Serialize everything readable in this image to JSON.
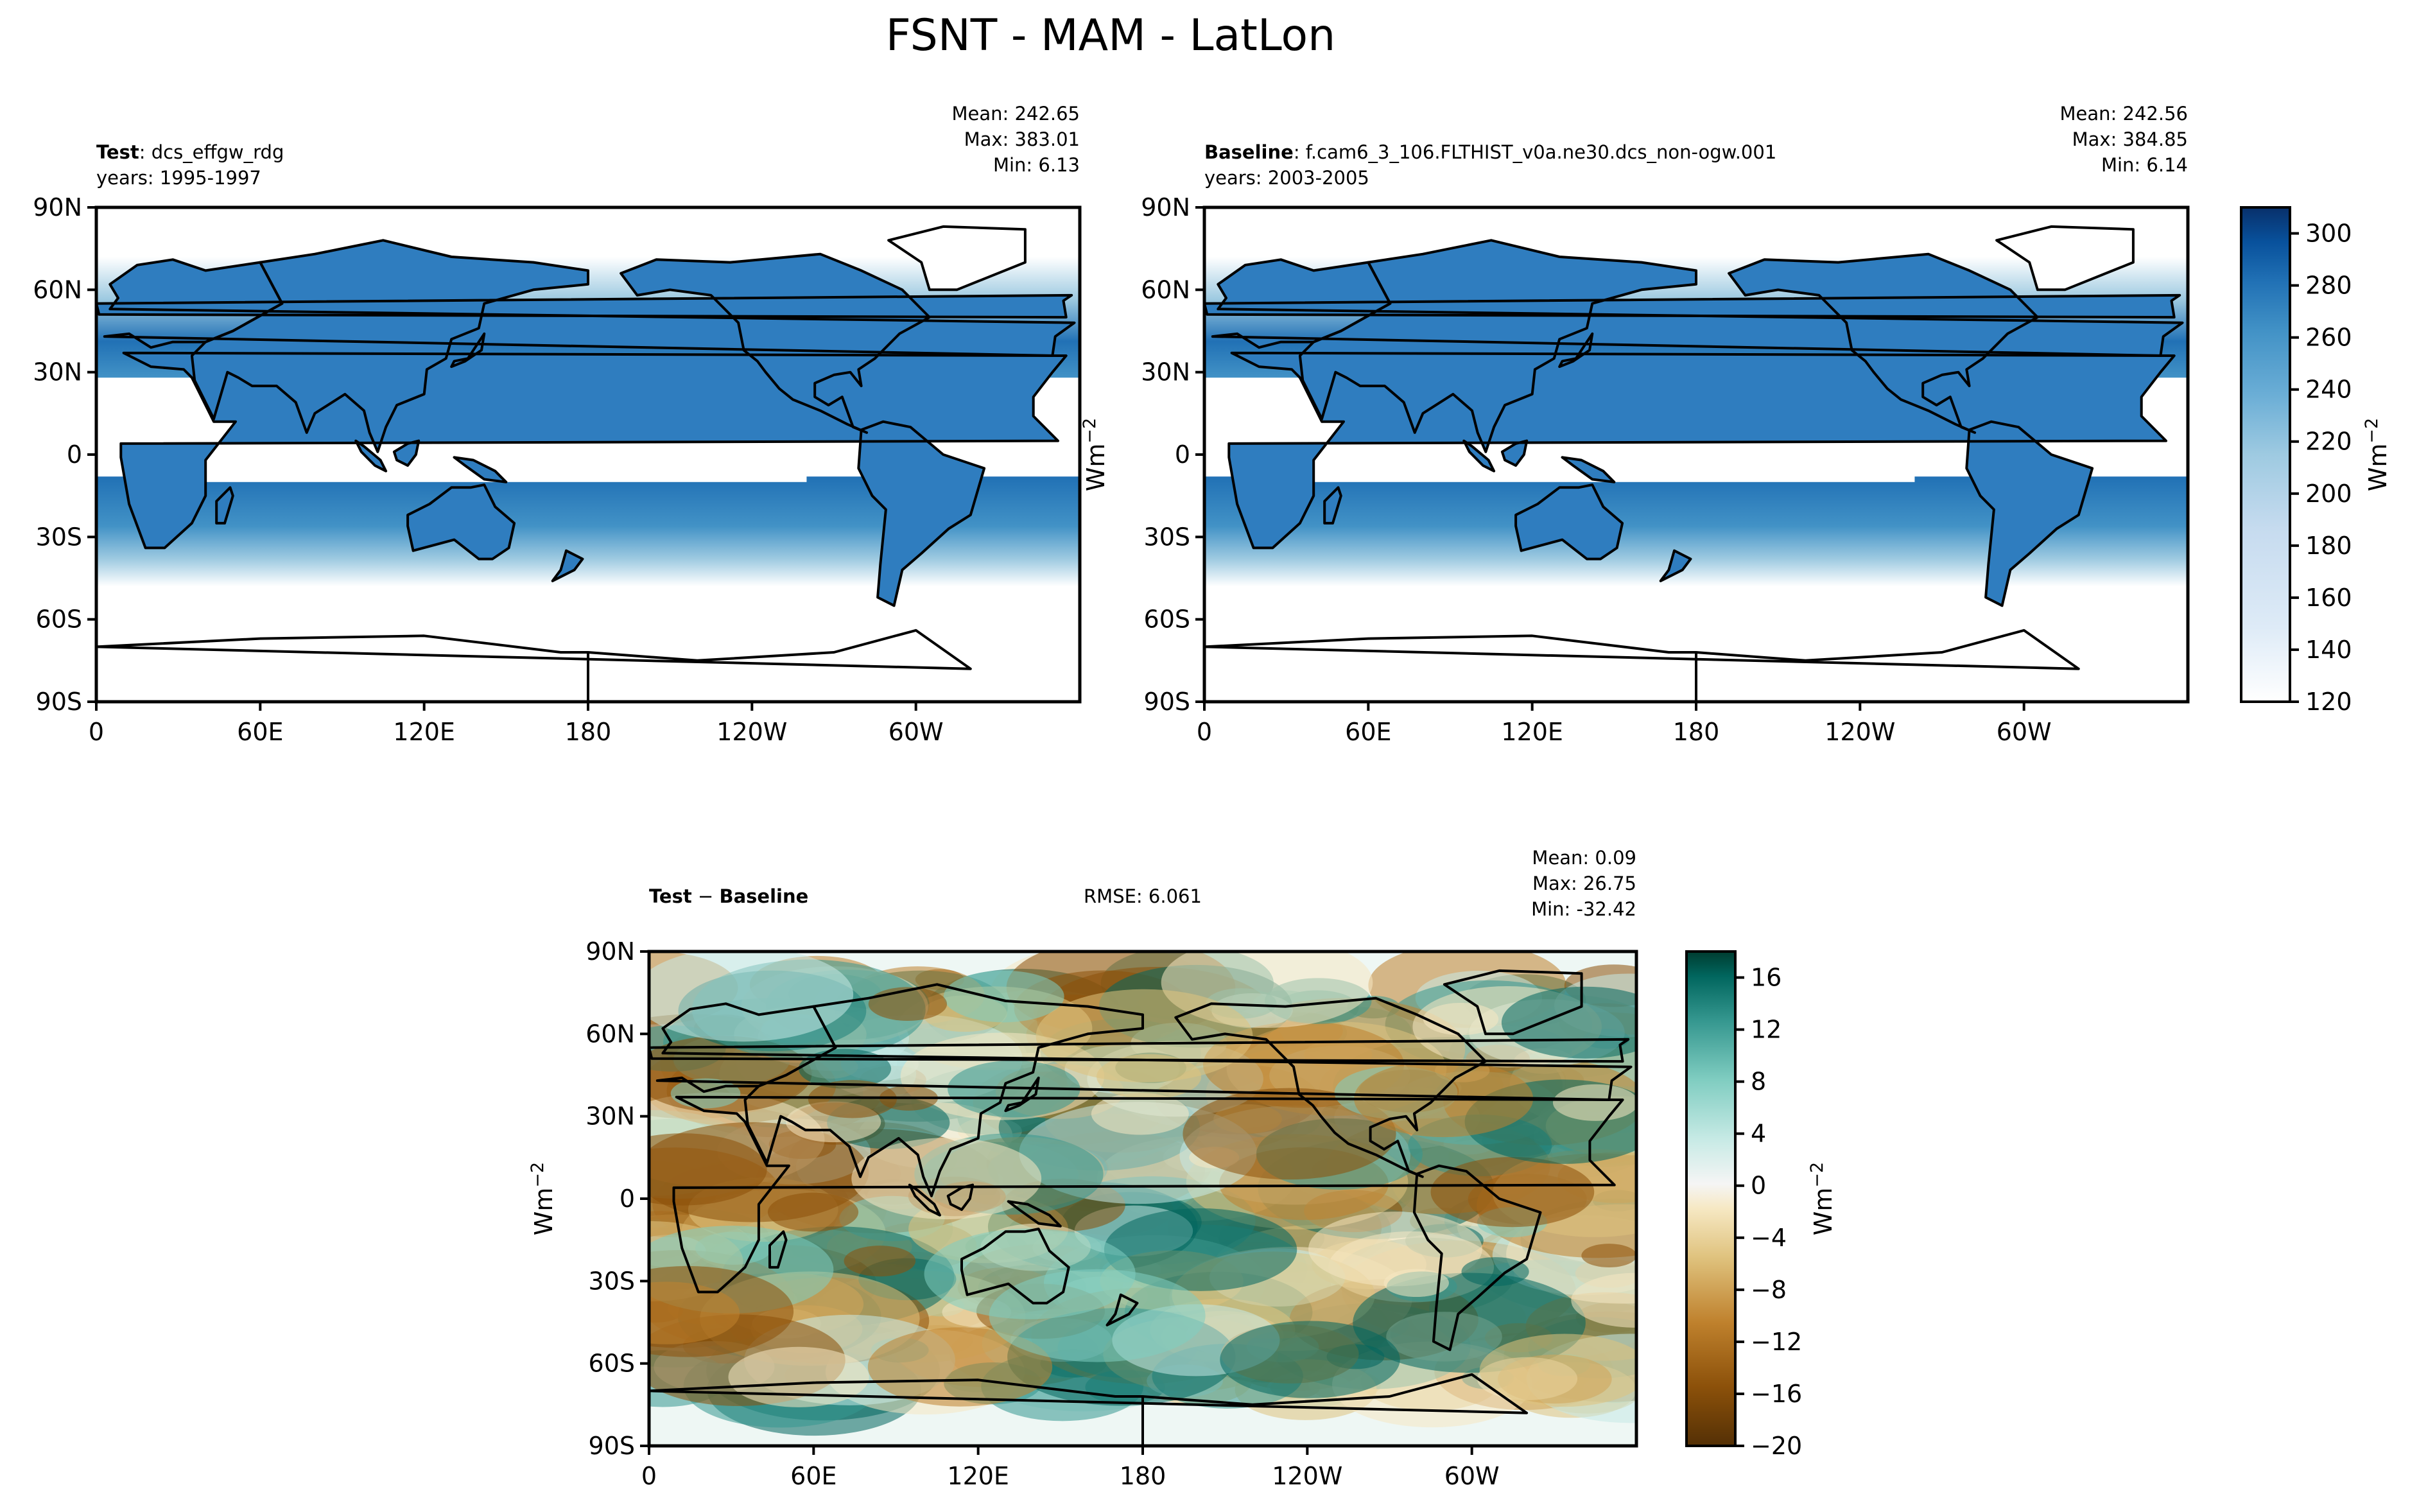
{
  "figure": {
    "title": "FSNT - MAM - LatLon"
  },
  "colors": {
    "ocean_test": "#f4f9fd",
    "test_ramp": [
      "#ffffff",
      "#e6eff9",
      "#c6dbef",
      "#9ecae1",
      "#6baed6",
      "#4292c6",
      "#2171b5",
      "#08519c",
      "#08306b"
    ],
    "diff_ramp": [
      "#543005",
      "#8c510a",
      "#bf812d",
      "#dfc27d",
      "#f6e8c3",
      "#f5f5f5",
      "#c7eae5",
      "#80cdc1",
      "#35978f",
      "#01665e",
      "#003c30"
    ],
    "coast": "#000000"
  },
  "chart_data": [
    {
      "type": "heatmap",
      "id": "test",
      "title_bold": "Test",
      "title_rest": ": dcs_effgw_rdg",
      "years": "years: 1995-1997",
      "stats": [
        "Mean: 242.65",
        "Max: 383.01",
        "Min:  6.13"
      ],
      "xticks": [
        "0",
        "60E",
        "120E",
        "180",
        "120W",
        "60W"
      ],
      "yticks": [
        "90N",
        "60N",
        "30N",
        "0",
        "30S",
        "60S",
        "90S"
      ],
      "xlim": [
        0,
        360
      ],
      "ylim": [
        -90,
        90
      ],
      "zones": [
        {
          "lat_top": 70,
          "lat_bottom": 55,
          "value": 180
        },
        {
          "lat_top": 55,
          "lat_bottom": 35,
          "value": 255
        },
        {
          "lat_top": 35,
          "lat_bottom": 25,
          "value": 270
        },
        {
          "lat_top": -10,
          "lat_bottom": -25,
          "value": 280
        },
        {
          "lat_top": -25,
          "lat_bottom": -45,
          "value": 200
        }
      ]
    },
    {
      "type": "heatmap",
      "id": "baseline",
      "title_bold": "Baseline",
      "title_rest": ": f.cam6_3_106.FLTHIST_v0a.ne30.dcs_non-ogw.001",
      "years": "years: 2003-2005",
      "stats": [
        "Mean: 242.56",
        "Max: 384.85",
        "Min:  6.14"
      ],
      "xticks": [
        "0",
        "60E",
        "120E",
        "180",
        "120W",
        "60W"
      ],
      "yticks": [
        "90N",
        "60N",
        "30N",
        "0",
        "30S",
        "60S",
        "90S"
      ],
      "xlim": [
        0,
        360
      ],
      "ylim": [
        -90,
        90
      ],
      "colorbar": {
        "label": "Wm",
        "label_sup": "−2",
        "ticks": [
          300,
          280,
          260,
          240,
          220,
          200,
          180,
          160,
          140,
          120
        ],
        "range": [
          120,
          310
        ]
      }
    },
    {
      "type": "heatmap",
      "id": "difference",
      "title_bold": "Test",
      "title_mid": " − ",
      "title_bold2": "Baseline",
      "rmse": "RMSE: 6.061",
      "stats": [
        "Mean:  0.09",
        "Max: 26.75",
        "Min: -32.42"
      ],
      "xticks": [
        "0",
        "60E",
        "120E",
        "180",
        "120W",
        "60W"
      ],
      "yticks": [
        "90N",
        "60N",
        "30N",
        "0",
        "30S",
        "60S",
        "90S"
      ],
      "xlim": [
        0,
        360
      ],
      "ylim": [
        -90,
        90
      ],
      "colorbar": {
        "label": "Wm",
        "label_sup": "−2",
        "ticks": [
          "16",
          "12",
          "8",
          "4",
          "0",
          "−4",
          "−8",
          "−12",
          "−16",
          "−20"
        ],
        "range": [
          -20,
          18
        ]
      }
    }
  ],
  "side_labels": {
    "unit": "Wm",
    "unit_sup": "−2"
  }
}
